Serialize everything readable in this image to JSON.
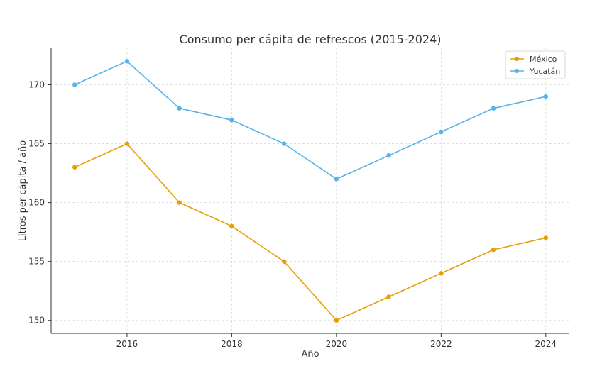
{
  "chart_data": {
    "type": "line",
    "title": "Consumo per cápita de refrescos (2015-2024)",
    "xlabel": "Año",
    "ylabel": "Litros per cápita / año",
    "x": [
      2015,
      2016,
      2017,
      2018,
      2019,
      2020,
      2021,
      2022,
      2023,
      2024
    ],
    "xticks": [
      "2016",
      "2018",
      "2020",
      "2022",
      "2024"
    ],
    "yticks": [
      "150",
      "155",
      "160",
      "165",
      "170"
    ],
    "xlim": [
      2014.55,
      2024.45
    ],
    "ylim": [
      148.9,
      173.1
    ],
    "grid": true,
    "legend_position": "top-right",
    "series": [
      {
        "name": "México",
        "color": "#E69F00",
        "values": [
          163,
          165,
          160,
          158,
          155,
          150,
          152,
          154,
          156,
          157
        ]
      },
      {
        "name": "Yucatán",
        "color": "#56B4E9",
        "values": [
          170,
          172,
          168,
          167,
          165,
          162,
          164,
          166,
          168,
          169
        ]
      }
    ]
  }
}
